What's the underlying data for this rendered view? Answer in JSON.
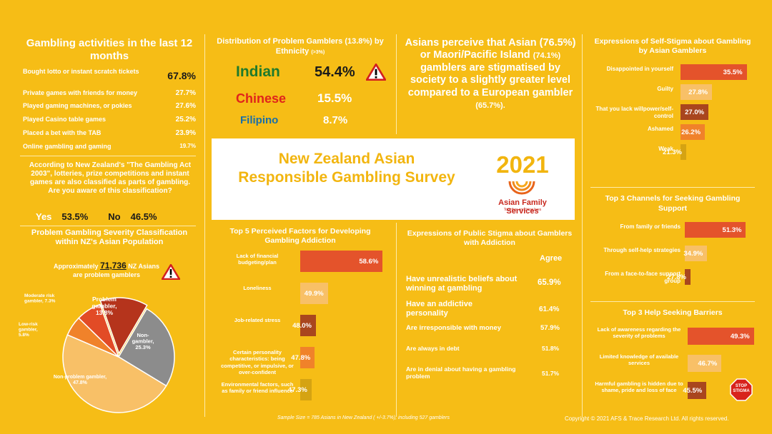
{
  "activities": {
    "title": "Gambling activities in the last 12 months",
    "items": [
      {
        "label": "Bought lotto or instant scratch tickets",
        "value": "67.8%"
      },
      {
        "label": "Private games with friends for money",
        "value": "27.7%"
      },
      {
        "label": "Played gaming machines, or pokies",
        "value": "27.6%"
      },
      {
        "label": "Played Casino table games",
        "value": "25.2%"
      },
      {
        "label": "Placed a bet with the TAB",
        "value": "23.9%"
      },
      {
        "label": "Online gambling and gaming",
        "value": "19.7%"
      }
    ]
  },
  "awareness": {
    "text": "According to New Zealand's \"The Gambling Act 2003\", lotteries, prize competitions and instant games are also classified as parts of gambling. Are you aware of this classification?",
    "yes_label": "Yes",
    "yes_value": "53.5%",
    "no_label": "No",
    "no_value": "46.5%"
  },
  "severity": {
    "title": "Problem Gambling Severity Classification within NZ's Asian Population",
    "note_prefix": "Approximately",
    "note_number": "71,736",
    "note_suffix": "NZ Asians are problem gamblers",
    "slices": [
      {
        "label": "Problem gambler, 13.8%",
        "value": 13.8,
        "color": "#b5341c"
      },
      {
        "label": "Non-gambler, 25.3%",
        "value": 25.3,
        "color": "#8c8c8c"
      },
      {
        "label": "Non-problem gambler, 47.8%",
        "value": 47.8,
        "color": "#f8c067"
      },
      {
        "label": "Low-risk gambler, 5.8%",
        "value": 5.8,
        "color": "#f0822a"
      },
      {
        "label": "Moderate risk gambler, 7.3%",
        "value": 7.3,
        "color": "#e24b26"
      }
    ]
  },
  "ethnicity": {
    "title": "Distribution of Problem Gamblers (13.8%) by Ethnicity",
    "title_note": "(>3%)",
    "rows": [
      {
        "name": "Indian",
        "value": "54.4%",
        "color": "#1f7a2c"
      },
      {
        "name": "Chinese",
        "value": "15.5%",
        "color": "#e0241b"
      },
      {
        "name": "Filipino",
        "value": "8.7%",
        "color": "#1a6fa8"
      }
    ]
  },
  "perception": {
    "text_a": "Asians perceive that Asian",
    "pct_a": "(76.5%)",
    "text_b": "or Maori/Pacific Island",
    "pct_b": "(74.1%)",
    "text_c": "gamblers are stigmatised by society to a slightly greater level compared to a European gambler",
    "pct_c": "(65.7%)."
  },
  "banner": {
    "title": "New Zealand Asian Responsible Gambling Survey",
    "year": "2021",
    "org": "Asian Family Services",
    "tagline": "Together enriching lives"
  },
  "self_stigma": {
    "title": "Expressions of Self-Stigma about Gambling by Asian Gamblers",
    "items": [
      {
        "label": "Disappointed in yourself",
        "value": "35.5%",
        "pct": 35.5,
        "color": "#e4532b"
      },
      {
        "label": "Guilty",
        "value": "27.8%",
        "pct": 27.8,
        "color": "#f8c067"
      },
      {
        "label": "That you lack willpower/self-control",
        "value": "27.0%",
        "pct": 27.0,
        "color": "#a9461e"
      },
      {
        "label": "Ashamed",
        "value": "26.2%",
        "pct": 26.2,
        "color": "#f0822a"
      },
      {
        "label": "Weak",
        "value": "21.3%",
        "pct": 21.3,
        "color": "#d5a312"
      }
    ]
  },
  "factors": {
    "title": "Top 5 Perceived Factors for Developing Gambling Addiction",
    "items": [
      {
        "label": "Lack of financial budgeting/plan",
        "value": "58.6%",
        "pct": 58.6,
        "color": "#e4532b"
      },
      {
        "label": "Loneliness",
        "value": "49.9%",
        "pct": 49.9,
        "color": "#f8c067"
      },
      {
        "label": "Job-related stress",
        "value": "48.0%",
        "pct": 48.0,
        "color": "#a9461e"
      },
      {
        "label": "Certain personality characteristics: being competitive, or impulsive, or over-confident",
        "value": "47.8%",
        "pct": 47.8,
        "color": "#f0822a"
      },
      {
        "label": "Environmental factors, such as family or friend influence",
        "value": "47.3%",
        "pct": 47.3,
        "color": "#d5a312"
      }
    ]
  },
  "public_stigma": {
    "title": "Expressions of Public Stigma about Gamblers with Addiction",
    "agree_label": "Agree",
    "items": [
      {
        "label": "Have unrealistic beliefs about winning at gambling",
        "value": "65.9%"
      },
      {
        "label": "Have an addictive personality",
        "value": "61.4%"
      },
      {
        "label": "Are irresponsible with money",
        "value": "57.9%"
      },
      {
        "label": "Are always in debt",
        "value": "51.8%"
      },
      {
        "label": "Are in denial about having a gambling problem",
        "value": "51.7%"
      }
    ]
  },
  "channels": {
    "title": "Top 3 Channels for Seeking Gambling Support",
    "items": [
      {
        "label": "From family or friends",
        "value": "51.3%",
        "pct": 51.3,
        "color": "#e4532b"
      },
      {
        "label": "Through self-help strategies",
        "value": "34.9%",
        "pct": 34.9,
        "color": "#f8c067"
      },
      {
        "label": "From a face-to-face support group",
        "value": "27.8%",
        "pct": 27.8,
        "color": "#a9461e"
      }
    ]
  },
  "barriers": {
    "title": "Top 3 Help Seeking Barriers",
    "items": [
      {
        "label": "Lack of awareness regarding the severity of problems",
        "value": "49.3%",
        "pct": 49.3,
        "color": "#e4532b"
      },
      {
        "label": "Limited knowledge of available services",
        "value": "46.7%",
        "pct": 46.7,
        "color": "#f8c067"
      },
      {
        "label": "Harmful gambling is hidden due to shame, pride and loss of face",
        "value": "45.5%",
        "pct": 45.5,
        "color": "#a9461e"
      }
    ],
    "stop_sign": "STOP STIGMA"
  },
  "footer": {
    "sample": "Sample Size = 785 Asians in New Zealand ( +/-3.7%), including 527 gamblers",
    "copyright": "Copyright © 2021 AFS & Trace Research Ltd. All rights reserved."
  }
}
